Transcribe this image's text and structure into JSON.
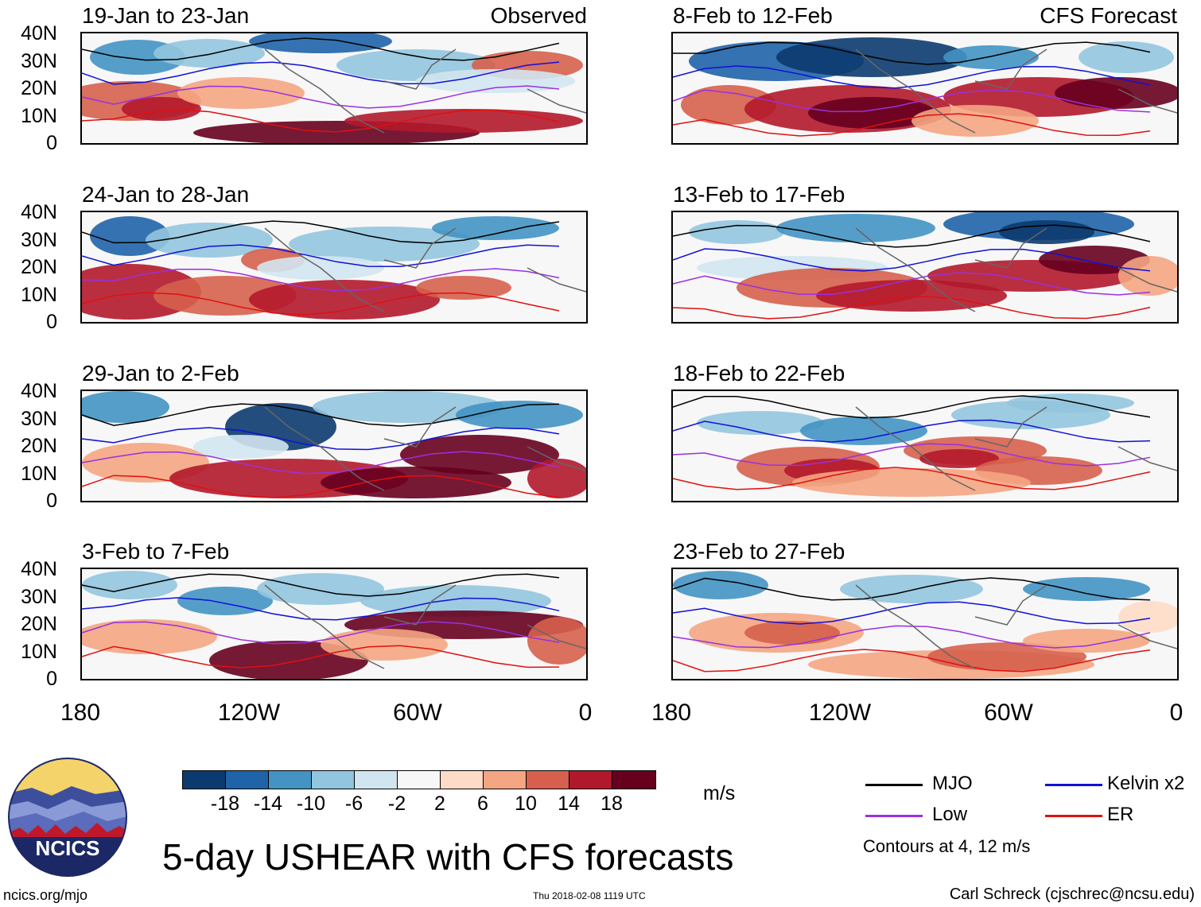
{
  "panels_left": [
    {
      "title": "19-Jan to 23-Jan",
      "label_right": "Observed"
    },
    {
      "title": "24-Jan to 28-Jan"
    },
    {
      "title": "29-Jan to 2-Feb"
    },
    {
      "title": "3-Feb to 7-Feb"
    }
  ],
  "panels_right": [
    {
      "title": "8-Feb to 12-Feb",
      "label_right": "CFS Forecast"
    },
    {
      "title": "13-Feb to 17-Feb"
    },
    {
      "title": "18-Feb to 22-Feb"
    },
    {
      "title": "23-Feb to 27-Feb"
    }
  ],
  "lat_labels": [
    "40N",
    "30N",
    "20N",
    "10N",
    "0"
  ],
  "lon_labels": [
    "180",
    "120W",
    "60W",
    "0"
  ],
  "colorbar": {
    "colors": [
      "#0b3a6e",
      "#1f63a8",
      "#4393c3",
      "#92c5de",
      "#d1e5f0",
      "#f7f7f7",
      "#fddbc7",
      "#f4a582",
      "#d6604d",
      "#b2182b",
      "#67001f"
    ],
    "labels": [
      "-18",
      "-14",
      "-10",
      "-6",
      "-2",
      "2",
      "6",
      "10",
      "14",
      "18"
    ],
    "units": "m/s"
  },
  "legend": {
    "items": [
      {
        "label": "MJO",
        "color": "#000000"
      },
      {
        "label": "Kelvin x2",
        "color": "#1010d8"
      },
      {
        "label": "Low",
        "color": "#9a30e0"
      },
      {
        "label": "ER",
        "color": "#e01010"
      }
    ],
    "note": "Contours at 4, 12 m/s"
  },
  "logo_text": "NCICS",
  "main_title": "5-day USHEAR with CFS forecasts",
  "footer": {
    "left": "ncics.org/mjo",
    "center": "Thu 2018-02-08 1119 UTC",
    "right": "Carl Schreck (cjschrec@ncsu.edu)"
  }
}
